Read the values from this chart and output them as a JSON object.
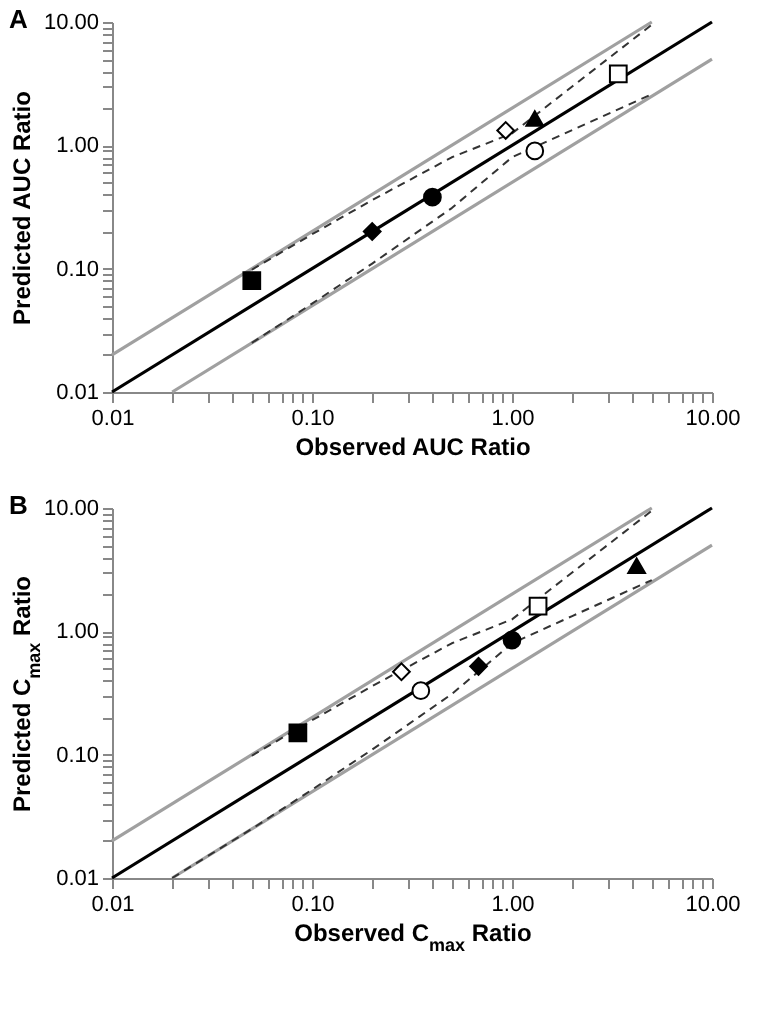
{
  "chart_data": [
    {
      "type": "scatter",
      "title": "A",
      "xlabel": "Observed AUC Ratio",
      "ylabel": "Predicted AUC Ratio",
      "log": "xy",
      "grid": false,
      "xlim": [
        0.01,
        10
      ],
      "ylim": [
        0.01,
        10
      ],
      "xticks": [
        {
          "value": 0.01,
          "label": "0.01"
        },
        {
          "value": 0.02,
          "label": null
        },
        {
          "value": 0.03,
          "label": null
        },
        {
          "value": 0.04,
          "label": null
        },
        {
          "value": 0.05,
          "label": null
        },
        {
          "value": 0.06,
          "label": null
        },
        {
          "value": 0.07,
          "label": null
        },
        {
          "value": 0.08,
          "label": null
        },
        {
          "value": 0.09,
          "label": null
        },
        {
          "value": 0.1,
          "label": "0.10"
        },
        {
          "value": 0.2,
          "label": null
        },
        {
          "value": 0.3,
          "label": null
        },
        {
          "value": 0.4,
          "label": null
        },
        {
          "value": 0.5,
          "label": null
        },
        {
          "value": 0.6,
          "label": null
        },
        {
          "value": 0.7,
          "label": null
        },
        {
          "value": 0.8,
          "label": null
        },
        {
          "value": 0.9,
          "label": null
        },
        {
          "value": 1,
          "label": "1.00"
        },
        {
          "value": 2,
          "label": null
        },
        {
          "value": 3,
          "label": null
        },
        {
          "value": 4,
          "label": null
        },
        {
          "value": 5,
          "label": null
        },
        {
          "value": 6,
          "label": null
        },
        {
          "value": 7,
          "label": null
        },
        {
          "value": 8,
          "label": null
        },
        {
          "value": 9,
          "label": null
        },
        {
          "value": 10,
          "label": "10.00"
        }
      ],
      "yticks": [
        {
          "value": 0.01,
          "label": "0.01"
        },
        {
          "value": 0.02,
          "label": null
        },
        {
          "value": 0.03,
          "label": null
        },
        {
          "value": 0.04,
          "label": null
        },
        {
          "value": 0.05,
          "label": null
        },
        {
          "value": 0.06,
          "label": null
        },
        {
          "value": 0.07,
          "label": null
        },
        {
          "value": 0.08,
          "label": null
        },
        {
          "value": 0.09,
          "label": null
        },
        {
          "value": 0.1,
          "label": "0.10"
        },
        {
          "value": 0.2,
          "label": null
        },
        {
          "value": 0.3,
          "label": null
        },
        {
          "value": 0.4,
          "label": null
        },
        {
          "value": 0.5,
          "label": null
        },
        {
          "value": 0.6,
          "label": null
        },
        {
          "value": 0.7,
          "label": null
        },
        {
          "value": 0.8,
          "label": null
        },
        {
          "value": 0.9,
          "label": null
        },
        {
          "value": 1,
          "label": "1.00"
        },
        {
          "value": 2,
          "label": null
        },
        {
          "value": 3,
          "label": null
        },
        {
          "value": 4,
          "label": null
        },
        {
          "value": 5,
          "label": null
        },
        {
          "value": 6,
          "label": null
        },
        {
          "value": 7,
          "label": null
        },
        {
          "value": 8,
          "label": null
        },
        {
          "value": 9,
          "label": null
        },
        {
          "value": 10,
          "label": "10.00"
        }
      ],
      "series": [
        {
          "type": "line",
          "color": "#a0a0a0",
          "line_style": "solid",
          "x": [
            0.01,
            5
          ],
          "values": [
            0.02,
            10
          ]
        },
        {
          "type": "line",
          "color": "#a0a0a0",
          "line_style": "solid",
          "x": [
            0.02,
            10
          ],
          "values": [
            0.01,
            5
          ]
        },
        {
          "type": "line",
          "color": "#000000",
          "line_style": "solid",
          "x": [
            0.01,
            10
          ],
          "values": [
            0.01,
            10
          ]
        },
        {
          "type": "line",
          "color": "#333333",
          "line_style": "dashed",
          "x": [
            0.05,
            0.1,
            0.2,
            0.5,
            1,
            2,
            5
          ],
          "values": [
            0.098,
            0.19,
            0.36,
            0.8,
            1.25,
            3.0,
            9.5
          ]
        },
        {
          "type": "line",
          "color": "#333333",
          "line_style": "dashed",
          "x": [
            0.05,
            0.1,
            0.2,
            0.5,
            1,
            2,
            5
          ],
          "values": [
            0.025,
            0.052,
            0.11,
            0.31,
            0.8,
            1.33,
            2.6
          ]
        },
        {
          "type": "scatter",
          "marker": "square",
          "color": "#000000",
          "x": [
            0.05
          ],
          "values": [
            0.08
          ]
        },
        {
          "type": "scatter",
          "marker": "diamond",
          "color": "#000000",
          "x": [
            0.2
          ],
          "values": [
            0.2
          ]
        },
        {
          "type": "scatter",
          "marker": "circle",
          "color": "#000000",
          "x": [
            0.4
          ],
          "values": [
            0.38
          ]
        },
        {
          "type": "scatter",
          "marker": "diamond",
          "color": "#ffffff",
          "x": [
            0.93
          ],
          "values": [
            1.32
          ]
        },
        {
          "type": "scatter",
          "marker": "triangle",
          "color": "#000000",
          "x": [
            1.3
          ],
          "values": [
            1.65
          ]
        },
        {
          "type": "scatter",
          "marker": "circle",
          "color": "#ffffff",
          "x": [
            1.3
          ],
          "values": [
            0.9
          ]
        },
        {
          "type": "scatter",
          "marker": "square",
          "color": "#ffffff",
          "x": [
            3.4
          ],
          "values": [
            3.8
          ]
        }
      ]
    },
    {
      "type": "scatter",
      "title": "B",
      "xlabel": "Observed C$_{max}$ Ratio",
      "ylabel": "Predicted C$_{max}$ Ratio",
      "log": "xy",
      "grid": false,
      "xlim": [
        0.01,
        10
      ],
      "ylim": [
        0.01,
        10
      ],
      "xticks": [
        {
          "value": 0.01,
          "label": "0.01"
        },
        {
          "value": 0.02,
          "label": null
        },
        {
          "value": 0.03,
          "label": null
        },
        {
          "value": 0.04,
          "label": null
        },
        {
          "value": 0.05,
          "label": null
        },
        {
          "value": 0.06,
          "label": null
        },
        {
          "value": 0.07,
          "label": null
        },
        {
          "value": 0.08,
          "label": null
        },
        {
          "value": 0.09,
          "label": null
        },
        {
          "value": 0.1,
          "label": "0.10"
        },
        {
          "value": 0.2,
          "label": null
        },
        {
          "value": 0.3,
          "label": null
        },
        {
          "value": 0.4,
          "label": null
        },
        {
          "value": 0.5,
          "label": null
        },
        {
          "value": 0.6,
          "label": null
        },
        {
          "value": 0.7,
          "label": null
        },
        {
          "value": 0.8,
          "label": null
        },
        {
          "value": 0.9,
          "label": null
        },
        {
          "value": 1,
          "label": "1.00"
        },
        {
          "value": 2,
          "label": null
        },
        {
          "value": 3,
          "label": null
        },
        {
          "value": 4,
          "label": null
        },
        {
          "value": 5,
          "label": null
        },
        {
          "value": 6,
          "label": null
        },
        {
          "value": 7,
          "label": null
        },
        {
          "value": 8,
          "label": null
        },
        {
          "value": 9,
          "label": null
        },
        {
          "value": 10,
          "label": "10.00"
        }
      ],
      "yticks": [
        {
          "value": 0.01,
          "label": "0.01"
        },
        {
          "value": 0.02,
          "label": null
        },
        {
          "value": 0.03,
          "label": null
        },
        {
          "value": 0.04,
          "label": null
        },
        {
          "value": 0.05,
          "label": null
        },
        {
          "value": 0.06,
          "label": null
        },
        {
          "value": 0.07,
          "label": null
        },
        {
          "value": 0.08,
          "label": null
        },
        {
          "value": 0.09,
          "label": null
        },
        {
          "value": 0.1,
          "label": "0.10"
        },
        {
          "value": 0.2,
          "label": null
        },
        {
          "value": 0.3,
          "label": null
        },
        {
          "value": 0.4,
          "label": null
        },
        {
          "value": 0.5,
          "label": null
        },
        {
          "value": 0.6,
          "label": null
        },
        {
          "value": 0.7,
          "label": null
        },
        {
          "value": 0.8,
          "label": null
        },
        {
          "value": 0.9,
          "label": null
        },
        {
          "value": 1,
          "label": "1.00"
        },
        {
          "value": 2,
          "label": null
        },
        {
          "value": 3,
          "label": null
        },
        {
          "value": 4,
          "label": null
        },
        {
          "value": 5,
          "label": null
        },
        {
          "value": 6,
          "label": null
        },
        {
          "value": 7,
          "label": null
        },
        {
          "value": 8,
          "label": null
        },
        {
          "value": 9,
          "label": null
        },
        {
          "value": 10,
          "label": "10.00"
        }
      ],
      "series": [
        {
          "type": "line",
          "color": "#a0a0a0",
          "line_style": "solid",
          "x": [
            0.01,
            5
          ],
          "values": [
            0.02,
            10
          ]
        },
        {
          "type": "line",
          "color": "#a0a0a0",
          "line_style": "solid",
          "x": [
            0.02,
            10
          ],
          "values": [
            0.01,
            5
          ]
        },
        {
          "type": "line",
          "color": "#000000",
          "line_style": "solid",
          "x": [
            0.01,
            10
          ],
          "values": [
            0.01,
            10
          ]
        },
        {
          "type": "line",
          "color": "#333333",
          "line_style": "dashed",
          "x": [
            0.05,
            0.1,
            0.2,
            0.5,
            1,
            2,
            5
          ],
          "values": [
            0.098,
            0.19,
            0.36,
            0.8,
            1.25,
            3.0,
            9.5
          ]
        },
        {
          "type": "line",
          "color": "#333333",
          "line_style": "dashed",
          "x": [
            0.02,
            0.05,
            0.1,
            0.2,
            0.5,
            1,
            2,
            5
          ],
          "values": [
            0.01,
            0.025,
            0.052,
            0.11,
            0.31,
            0.8,
            1.33,
            2.6
          ]
        },
        {
          "type": "scatter",
          "marker": "square",
          "color": "#000000",
          "x": [
            0.085
          ],
          "values": [
            0.15
          ]
        },
        {
          "type": "scatter",
          "marker": "diamond",
          "color": "#ffffff",
          "x": [
            0.28
          ],
          "values": [
            0.47
          ]
        },
        {
          "type": "scatter",
          "marker": "circle",
          "color": "#ffffff",
          "x": [
            0.35
          ],
          "values": [
            0.33
          ]
        },
        {
          "type": "scatter",
          "marker": "diamond",
          "color": "#000000",
          "x": [
            0.68
          ],
          "values": [
            0.52
          ]
        },
        {
          "type": "scatter",
          "marker": "circle",
          "color": "#000000",
          "x": [
            1.0
          ],
          "values": [
            0.85
          ]
        },
        {
          "type": "scatter",
          "marker": "square",
          "color": "#ffffff",
          "x": [
            1.35
          ],
          "values": [
            1.6
          ]
        },
        {
          "type": "scatter",
          "marker": "triangle",
          "color": "#000000",
          "x": [
            4.2
          ],
          "values": [
            3.4
          ]
        }
      ]
    }
  ]
}
